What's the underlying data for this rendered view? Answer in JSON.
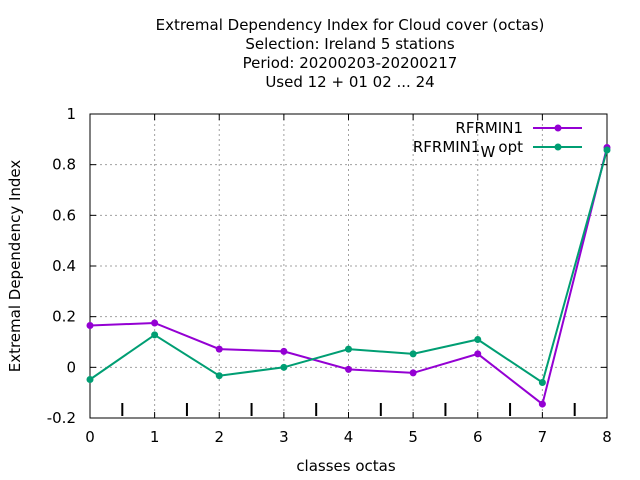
{
  "chart_data": {
    "type": "line",
    "title_lines": [
      "Extremal Dependency Index  for Cloud cover (octas)",
      "Selection: Ireland      5 stations",
      "Period: 20200203-20200217",
      "Used  12 + 01 02 ... 24"
    ],
    "xlabel": "classes octas",
    "ylabel": "Extremal Dependency Index",
    "xlim": [
      0,
      8
    ],
    "ylim": [
      -0.2,
      1
    ],
    "x_ticks": [
      0,
      1,
      2,
      3,
      4,
      5,
      6,
      7,
      8
    ],
    "y_ticks": [
      -0.2,
      0,
      0.2,
      0.4,
      0.6,
      0.8,
      1
    ],
    "y_tick_labels": [
      "-0.2",
      "0",
      "0.2",
      "0.4",
      "0.6",
      "0.8",
      "1"
    ],
    "grid": true,
    "legend_position": "top-right",
    "series": [
      {
        "name": "RFRMIN1",
        "color": "#9400d3",
        "x": [
          0,
          1,
          2,
          3,
          4,
          5,
          6,
          7,
          8
        ],
        "values": [
          0.165,
          0.175,
          0.072,
          0.063,
          -0.008,
          -0.022,
          0.053,
          -0.145,
          0.868
        ]
      },
      {
        "name": "RFRMIN1",
        "name_subscript": "W",
        "name_suffix": "opt",
        "color": "#009e73",
        "x": [
          0,
          1,
          2,
          3,
          4,
          5,
          6,
          7,
          8
        ],
        "values": [
          -0.048,
          0.128,
          -0.033,
          0.0,
          0.072,
          0.053,
          0.11,
          -0.06,
          0.858
        ]
      }
    ],
    "x_minor_marks": [
      0.5,
      1.5,
      2.5,
      3.5,
      4.5,
      5.5,
      6.5,
      7.5
    ]
  }
}
